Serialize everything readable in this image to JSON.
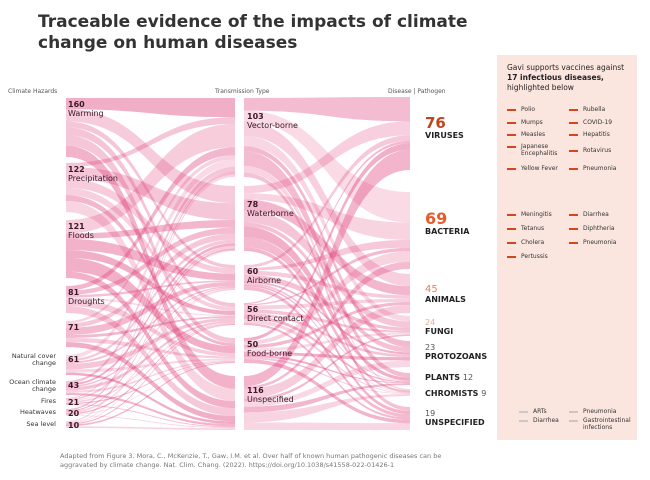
{
  "title": "Traceable evidence of the impacts of climate change on human diseases",
  "columns": {
    "left": "Climate Hazards",
    "middle": "Transmission Type",
    "right": "Disease | Pathogen"
  },
  "hazards": [
    {
      "value": "160",
      "label": "Warming",
      "color": "#0e2a47"
    },
    {
      "value": "122",
      "label": "Precipitation",
      "color": "#0f4e8c"
    },
    {
      "value": "121",
      "label": "Floods",
      "color": "#1566b2"
    },
    {
      "value": "81",
      "label": "Droughts",
      "color": "#1c8fe6"
    },
    {
      "value": "71",
      "label": "",
      "color": "#5cb5ef"
    },
    {
      "value": "61",
      "label": "Natural cover change",
      "color": "#aad7f4"
    },
    {
      "value": "43",
      "label": "Ocean climate change",
      "color": "#d2e8f6"
    },
    {
      "value": "21",
      "label": "Fires",
      "color": "#d8ebf6"
    },
    {
      "value": "20",
      "label": "Heatwaves",
      "color": "#d8ebf6"
    },
    {
      "value": "10",
      "label": "Sea level",
      "color": "#d8ebf6"
    }
  ],
  "transmission": [
    {
      "value": "103",
      "label": "Vector-borne",
      "color": "#1b5e32"
    },
    {
      "value": "78",
      "label": "Waterborne",
      "color": "#228c47"
    },
    {
      "value": "60",
      "label": "Airborne",
      "color": "#2ecb6f"
    },
    {
      "value": "56",
      "label": "Direct contact",
      "color": "#a6c84b"
    },
    {
      "value": "50",
      "label": "Food-borne",
      "color": "#c4da7c"
    },
    {
      "value": "116",
      "label": "Unspecified",
      "color": "#dfe9b2"
    }
  ],
  "pathogens": [
    {
      "value": "76",
      "label": "VIRUSES",
      "color": "#c0441c"
    },
    {
      "value": "69",
      "label": "BACTERIA",
      "color": "#e85a2a"
    },
    {
      "value": "45",
      "label": "ANIMALS",
      "color": "#e6825d"
    },
    {
      "value": "24",
      "label": "FUNGI",
      "color": "#efab8d"
    },
    {
      "value": "23",
      "label": "PROTOZOANS",
      "color": "#f8d6c7"
    },
    {
      "value": "12",
      "label": "PLANTS",
      "color": "#f8d6c7"
    },
    {
      "value": "9",
      "label": "CHROMISTS",
      "color": "#f8d6c7"
    },
    {
      "value": "19",
      "label": "UNSPECIFIED",
      "color": "#f8d6c7"
    }
  ],
  "flow_color": "#e0467f",
  "panel": {
    "heading_1": "Gavi supports vaccines against",
    "heading_bold": "17 infectious diseases,",
    "heading_2": "highlighted below",
    "viruses": [
      "Polio",
      "Mumps",
      "Measles",
      "Japanese Encephalitis",
      "Yellow Fever",
      "Rubella",
      "COVID-19",
      "Hepatitis",
      "Rotavirus",
      "Pneumonia"
    ],
    "bacteria": [
      "Meningitis",
      "Tetanus",
      "Cholera",
      "Pertussis",
      "Diarrhea",
      "Diphtheria",
      "Pneumonia"
    ],
    "other": [
      "ARTs",
      "Diarrhea",
      "Pneumonia",
      "Gastrointestinal infections"
    ]
  },
  "footer": "Adapted from Figure 3. Mora, C., McKenzie, T., Gaw, I.M. et al. Over half of known human pathogenic diseases can be aggravated by climate change. Nat. Clim. Chang. (2022). https://doi.org/10.1038/s41558-022-01426-1"
}
